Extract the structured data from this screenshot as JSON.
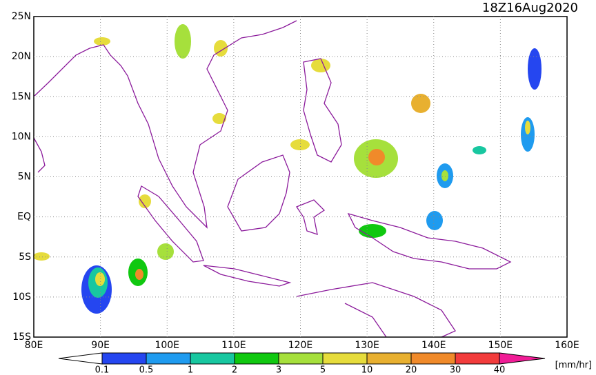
{
  "map": {
    "timestamp": "18Z16Aug2020",
    "lat_labels": [
      "25N",
      "20N",
      "15N",
      "10N",
      "5N",
      "EQ",
      "5S",
      "10S",
      "15S"
    ],
    "lon_labels": [
      "80E",
      "90E",
      "100E",
      "110E",
      "120E",
      "130E",
      "140E",
      "150E",
      "160E"
    ],
    "colorbar": {
      "labels": [
        "0.1",
        "0.5",
        "1",
        "2",
        "3",
        "5",
        "10",
        "20",
        "30",
        "40"
      ],
      "colors": [
        "#2546f0",
        "#1f9bef",
        "#18c7a0",
        "#10c810",
        "#a6e03c",
        "#e6dc3c",
        "#e8b030",
        "#f08a2a",
        "#f23c3c"
      ],
      "under_color": "#ffffff",
      "over_color": "#f01c96",
      "unit": "[mm/hr]"
    }
  }
}
